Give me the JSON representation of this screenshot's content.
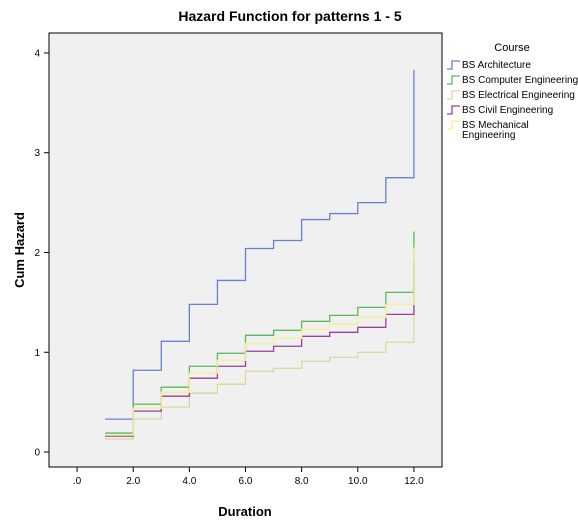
{
  "chart_data": {
    "type": "line",
    "step": true,
    "title": "Hazard Function for patterns 1 - 5",
    "xlabel": "Duration",
    "ylabel": "Cum Hazard",
    "xlim": [
      -1,
      13
    ],
    "ylim": [
      -0.15,
      4.2
    ],
    "x_ticks": [
      0,
      2,
      4,
      6,
      8,
      10,
      12
    ],
    "x_tick_labels": [
      ".0",
      "2.0",
      "4.0",
      "6.0",
      "8.0",
      "10.0",
      "12.0"
    ],
    "y_ticks": [
      0,
      1,
      2,
      3,
      4
    ],
    "y_tick_labels": [
      "0",
      "1",
      "2",
      "3",
      "4"
    ],
    "grid": false,
    "plot_background": "#f0f0f0",
    "legend": {
      "title": "Course",
      "placement": "right",
      "entries": [
        {
          "label": "BS Architecture",
          "lines": [
            "BS Architecture"
          ]
        },
        {
          "label": "BS Computer Engineering",
          "lines": [
            "BS Computer Engineering"
          ]
        },
        {
          "label": "BS Electrical Engineering",
          "lines": [
            "BS Electrical Engineering"
          ]
        },
        {
          "label": "BS Civil Engineering",
          "lines": [
            "BS Civil Engineering"
          ]
        },
        {
          "label": "BS Mechanical Engineering",
          "lines": [
            "BS Mechanical",
            "Engineering"
          ]
        }
      ]
    },
    "x": [
      1,
      2,
      3,
      4,
      5,
      6,
      7,
      8,
      9,
      10,
      11,
      12
    ],
    "series": [
      {
        "name": "BS Architecture",
        "color": "#6b7fd1",
        "values": [
          0.33,
          0.82,
          1.11,
          1.48,
          1.72,
          2.04,
          2.12,
          2.33,
          2.39,
          2.5,
          2.75,
          3.83
        ]
      },
      {
        "name": "BS Computer Engineering",
        "color": "#5ab85a",
        "values": [
          0.19,
          0.48,
          0.65,
          0.86,
          0.99,
          1.17,
          1.22,
          1.31,
          1.37,
          1.45,
          1.6,
          2.21
        ]
      },
      {
        "name": "BS Electrical Engineering",
        "color": "#dbd79e",
        "values": [
          0.13,
          0.33,
          0.45,
          0.59,
          0.68,
          0.81,
          0.84,
          0.91,
          0.95,
          1.0,
          1.1,
          1.52
        ]
      },
      {
        "name": "BS Civil Engineering",
        "color": "#9b3f9b",
        "values": [
          0.16,
          0.41,
          0.56,
          0.74,
          0.86,
          1.01,
          1.06,
          1.16,
          1.2,
          1.25,
          1.38,
          1.91
        ]
      },
      {
        "name": "BS Mechanical Engineering",
        "color": "#f2f28c",
        "values": [
          0.17,
          0.44,
          0.6,
          0.79,
          0.92,
          1.09,
          1.14,
          1.23,
          1.28,
          1.35,
          1.48,
          2.05
        ]
      }
    ]
  }
}
